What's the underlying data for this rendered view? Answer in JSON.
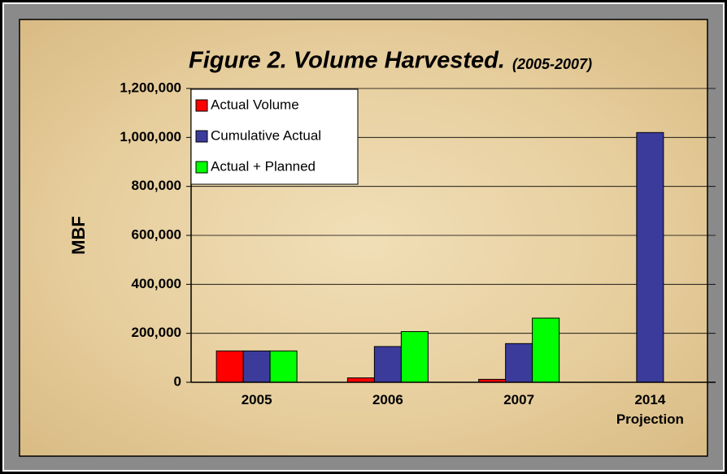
{
  "chart_data": {
    "type": "bar",
    "title": "Figure 2. Volume Harvested.",
    "subtitle": "(2005-2007)",
    "y_label": "MBF",
    "categories": [
      "2005",
      "2006",
      "2007",
      "2014 Projection"
    ],
    "series": [
      {
        "name": "Actual Volume",
        "color": "#ff0000",
        "values": [
          128000,
          18000,
          12000,
          null
        ]
      },
      {
        "name": "Cumulative Actual",
        "color": "#3b3b9c",
        "values": [
          128000,
          146000,
          158000,
          1020000
        ]
      },
      {
        "name": "Actual + Planned",
        "color": "#00ff00",
        "values": [
          128000,
          207000,
          262000,
          null
        ]
      }
    ],
    "ylim": [
      0,
      1200000
    ],
    "yticks": [
      0,
      {
        "value": 200000,
        "label": "200,000"
      },
      {
        "value": 400000,
        "label": "400,000"
      },
      {
        "value": 600000,
        "label": "600,000"
      },
      {
        "value": 800000,
        "label": "800,000"
      },
      {
        "value": 1000000,
        "label": "1,000,000"
      },
      {
        "value": 1200000,
        "label": "1,200,000"
      }
    ],
    "grid": true,
    "legend": "upper left"
  }
}
